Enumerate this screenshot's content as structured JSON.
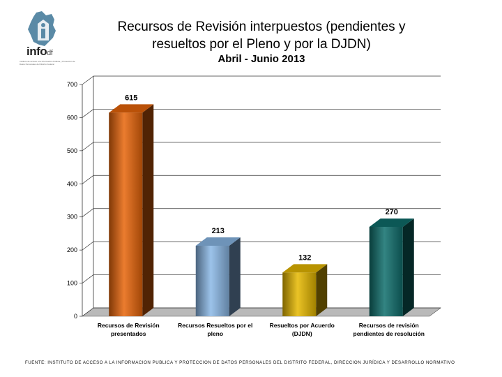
{
  "logo": {
    "word": "info",
    "suffix": "df",
    "caption": "Instituto de Acceso a la Información Pública y Protección de Datos Personales del Distrito Federal"
  },
  "header": {
    "title_line1": "Recursos de Revisión interpuestos (pendientes y",
    "title_line2": "resueltos por el Pleno y por la DJDN)",
    "subtitle": "Abril - Junio 2013"
  },
  "colors": {
    "bar1": "#e8650a",
    "bar2": "#8ab8e6",
    "bar3": "#e6b800",
    "bar4": "#0f6e6c",
    "background": "#ffffff"
  },
  "chart_data": {
    "type": "bar",
    "categories": [
      [
        "Recursos de Revisión",
        "presentados"
      ],
      [
        "Recursos Resueltos por el",
        "pleno"
      ],
      [
        "Resueltos por Acuerdo",
        "(DJDN)"
      ],
      [
        "Recursos de revisión",
        "pendientes de resolución"
      ]
    ],
    "values": [
      615,
      213,
      132,
      270
    ],
    "ylim": [
      0,
      700
    ],
    "yticks": [
      0,
      100,
      200,
      300,
      400,
      500,
      600,
      700
    ],
    "grid": true,
    "style": "3d"
  },
  "footer": "FUENTE: INSTITUTO DE ACCESO A LA INFORMACION PUBLICA Y PROTECCION DE DATOS PERSONALES DEL DISTRITO FEDERAL, DIRECCION JURÍDICA Y DESARROLLO NORMATIVO"
}
